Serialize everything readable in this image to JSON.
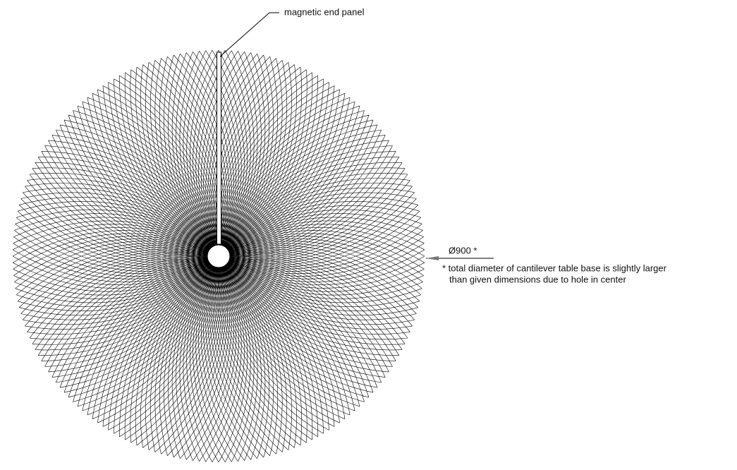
{
  "annotations": {
    "end_panel": "magnetic end panel",
    "diameter": "Ø900 *",
    "note_line_1": "* total diameter of cantilever table base is slightly larger",
    "note_line_2": "than given dimensions due to hole in center"
  }
}
